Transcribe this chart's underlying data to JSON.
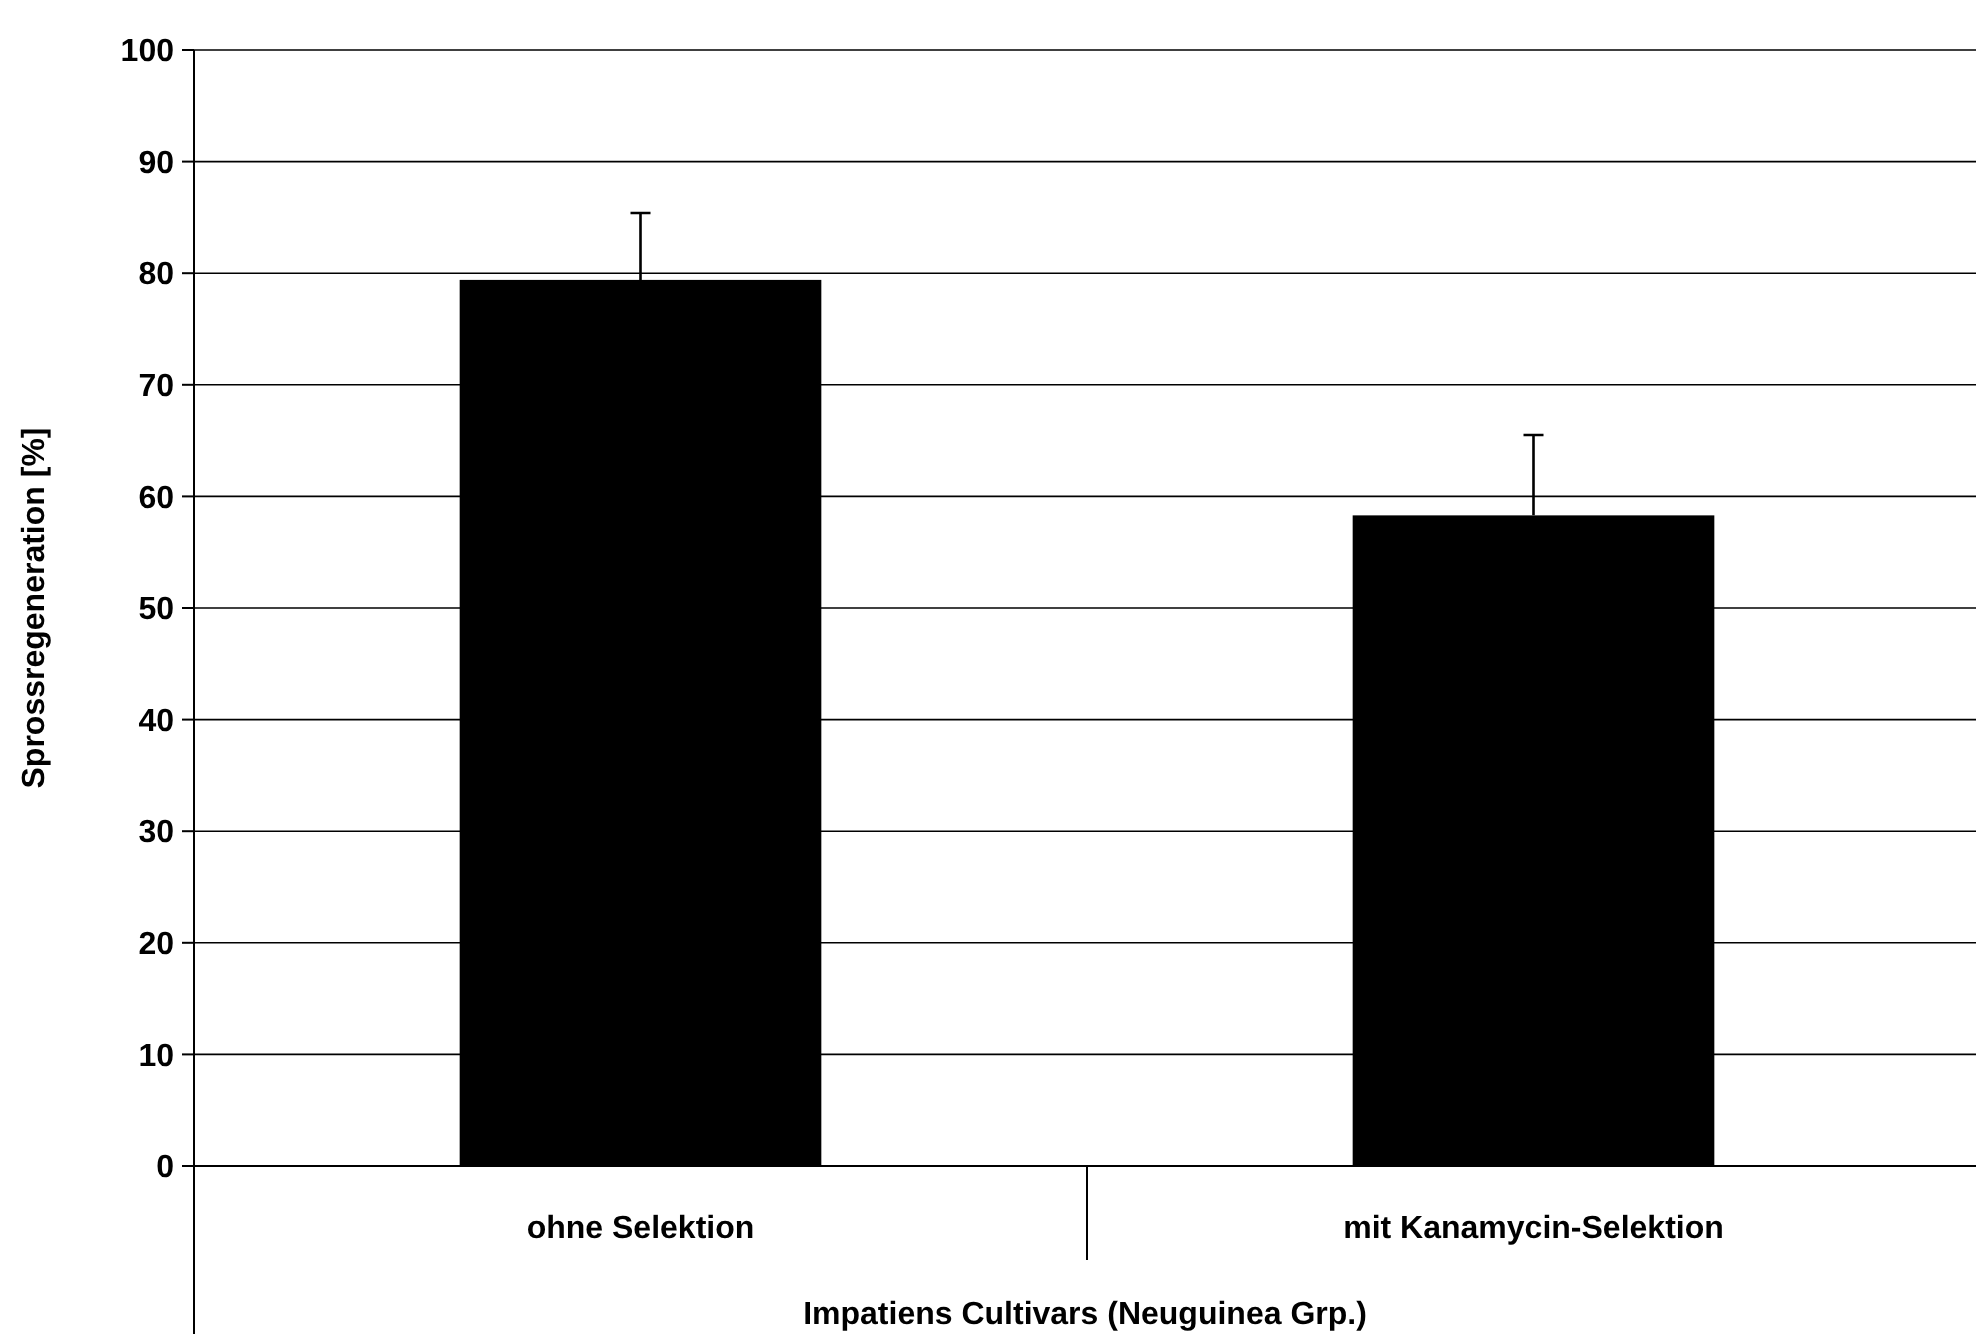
{
  "chart_data": {
    "type": "bar",
    "xlabel": "Impatiens Cultivars (Neuguinea Grp.)",
    "ylabel": "Sprossregeneration [%]",
    "categories": [
      "ohne Selektion",
      "mit Kanamycin-Selektion"
    ],
    "values": [
      79.4,
      58.3
    ],
    "errors": [
      [
        79.4,
        85.4
      ],
      [
        58.3,
        65.5
      ]
    ],
    "color": "#000000",
    "ylim": [
      0,
      100
    ],
    "yticks": [
      0,
      10,
      20,
      30,
      40,
      50,
      60,
      70,
      80,
      90,
      100
    ],
    "grid": "y"
  }
}
